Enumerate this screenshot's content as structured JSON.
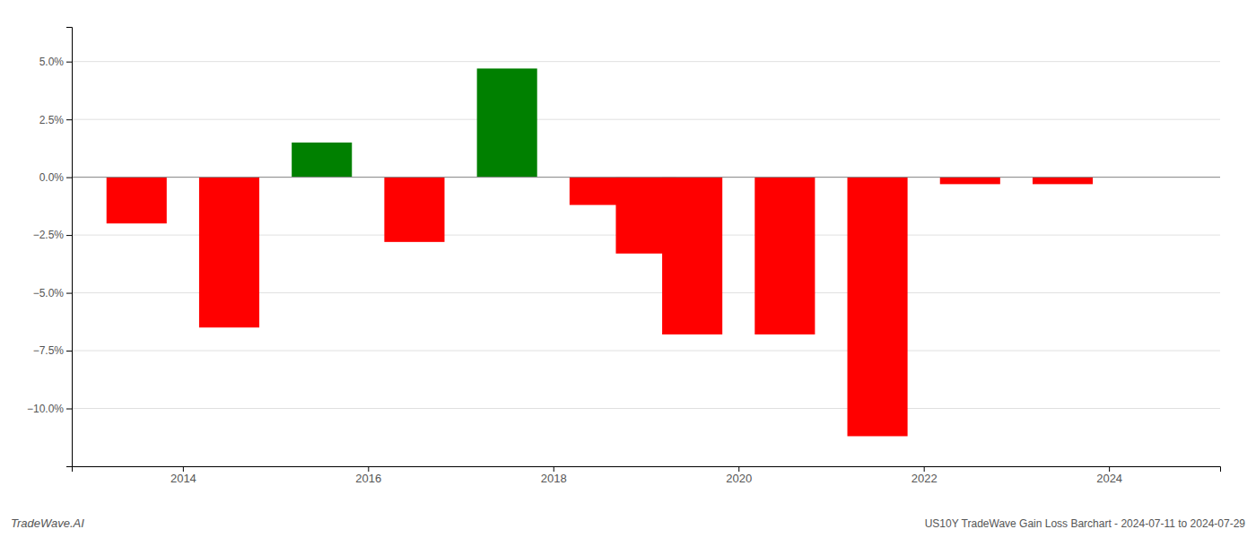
{
  "chart_data": {
    "type": "bar",
    "x": [
      2013.5,
      2014.5,
      2015.5,
      2016.5,
      2017.5,
      2018.5,
      2019.0,
      2019.5,
      2020.5,
      2021.5,
      2022.5,
      2023.5
    ],
    "values": [
      -2.0,
      -6.5,
      1.5,
      -2.8,
      4.7,
      -1.2,
      -3.3,
      -6.8,
      -6.8,
      -11.2,
      -0.3,
      -0.3
    ],
    "colors": [
      "#ff0000",
      "#ff0000",
      "#008000",
      "#ff0000",
      "#008000",
      "#ff0000",
      "#ff0000",
      "#ff0000",
      "#ff0000",
      "#ff0000",
      "#ff0000",
      "#ff0000"
    ],
    "xlim": [
      2012.8,
      2025.2
    ],
    "xticks": [
      2014,
      2016,
      2018,
      2020,
      2022,
      2024
    ],
    "ylim": [
      -12.5,
      6.5
    ],
    "yticks": [
      {
        "value": -10.0,
        "label": "−10.0%"
      },
      {
        "value": -7.5,
        "label": "−7.5%"
      },
      {
        "value": -5.0,
        "label": "−5.0%"
      },
      {
        "value": -2.5,
        "label": "−2.5%"
      },
      {
        "value": 0.0,
        "label": "0.0%"
      },
      {
        "value": 2.5,
        "label": "2.5%"
      },
      {
        "value": 5.0,
        "label": "5.0%"
      }
    ],
    "grid": true,
    "annotations": [
      "TradeWave.AI",
      "US10Y TradeWave Gain Loss Barchart - 2024-07-11 to 2024-07-29"
    ]
  }
}
